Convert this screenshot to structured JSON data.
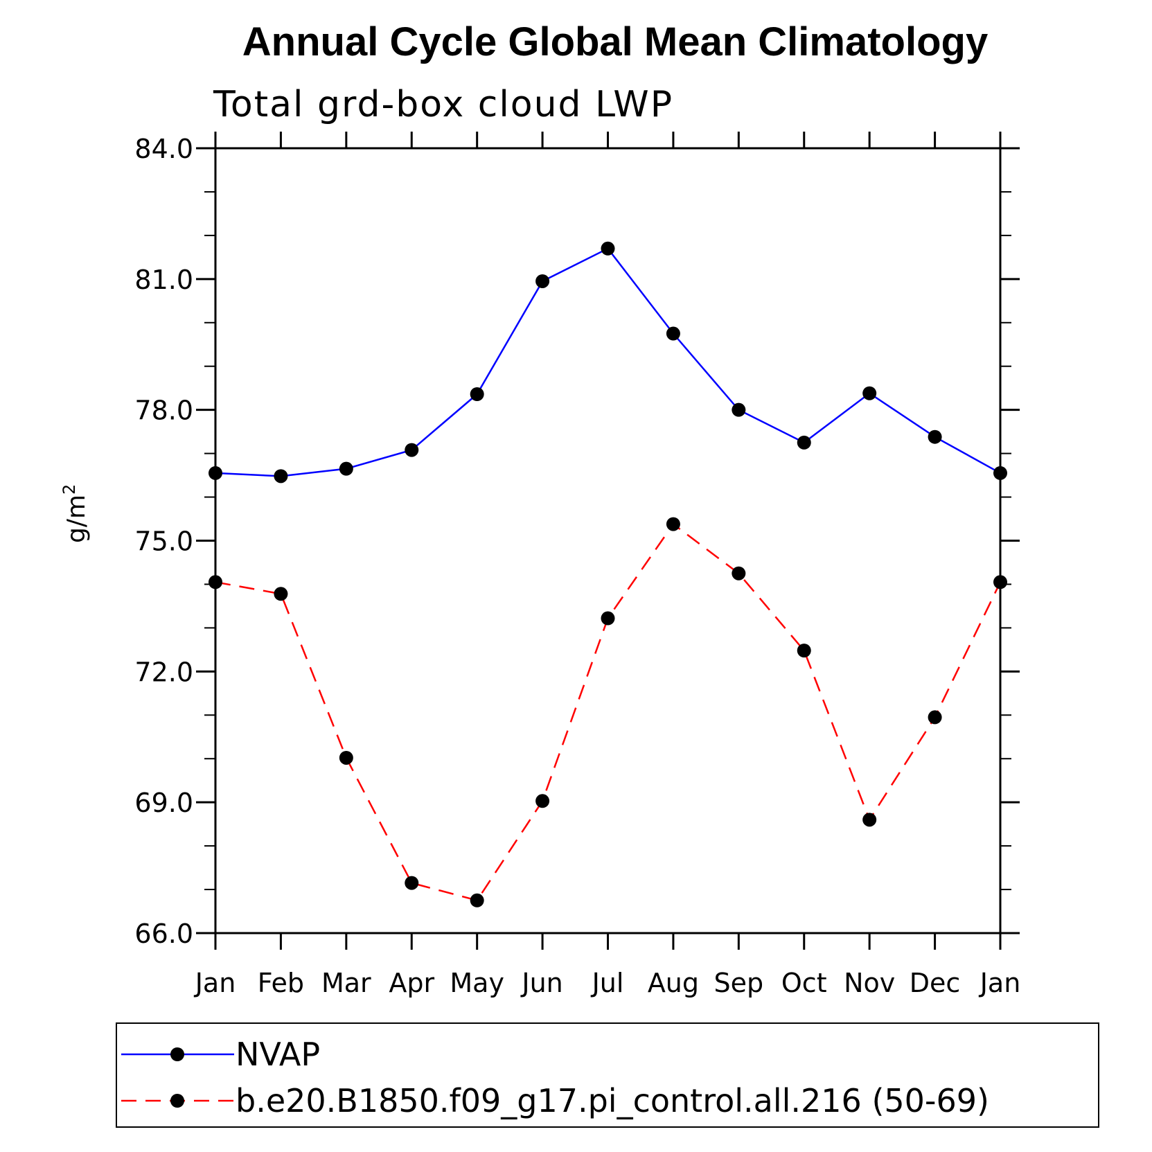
{
  "chart_data": {
    "type": "line",
    "title": "Annual Cycle Global Mean Climatology",
    "subtitle": "Total grd-box cloud LWP",
    "ylabel": "g/m",
    "ylabel_sup": "2",
    "xlabel": "",
    "ylim": [
      66,
      84
    ],
    "yticks": [
      "66.0",
      "69.0",
      "72.0",
      "75.0",
      "78.0",
      "81.0",
      "84.0"
    ],
    "categories": [
      "Jan",
      "Feb",
      "Mar",
      "Apr",
      "May",
      "Jun",
      "Jul",
      "Aug",
      "Sep",
      "Oct",
      "Nov",
      "Dec",
      "Jan"
    ],
    "legend_position": "bottom",
    "series": [
      {
        "name": "NVAP",
        "color": "#0000ff",
        "style": "solid",
        "values": [
          76.55,
          76.48,
          76.65,
          77.08,
          78.36,
          80.95,
          81.7,
          79.75,
          78.0,
          77.25,
          78.38,
          77.38,
          76.55
        ]
      },
      {
        "name": "b.e20.B1850.f09_g17.pi_control.all.216 (50-69)",
        "color": "#ff0000",
        "style": "dashed",
        "values": [
          74.05,
          73.78,
          70.02,
          67.15,
          66.75,
          69.03,
          73.22,
          75.38,
          74.25,
          72.48,
          68.6,
          70.95,
          74.05
        ]
      }
    ]
  }
}
